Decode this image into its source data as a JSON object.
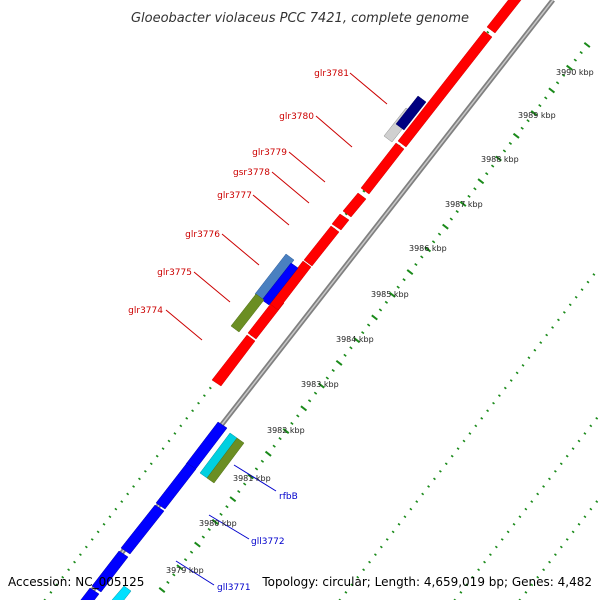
{
  "title": "Gloeobacter violaceus PCC 7421, complete genome",
  "footer": {
    "accession": "Accession: NC_005125",
    "info": "Topology: circular; Length: 4,659,019 bp; Genes: 4,482"
  },
  "colors": {
    "forward": "#ff0000",
    "reverse": "#0000ff",
    "backbone": "#888888",
    "ticks": "#1a8a1a",
    "label_forward": "#cc0000",
    "label_reverse": "#0000cc"
  },
  "scale_labels": [
    "3979 kbp",
    "3980 kbp",
    "3981 kbp",
    "3982 kbp",
    "3983 kbp",
    "3984 kbp",
    "3985 kbp",
    "3986 kbp",
    "3987 kbp",
    "3988 kbp",
    "3989 kbp",
    "3990 kbp"
  ],
  "gene_labels": [
    {
      "name": "glr3781",
      "strand": "forward"
    },
    {
      "name": "glr3780",
      "strand": "forward"
    },
    {
      "name": "glr3779",
      "strand": "forward"
    },
    {
      "name": "gsr3778",
      "strand": "forward"
    },
    {
      "name": "glr3777",
      "strand": "forward"
    },
    {
      "name": "glr3776",
      "strand": "forward"
    },
    {
      "name": "glr3775",
      "strand": "forward"
    },
    {
      "name": "glr3774",
      "strand": "forward"
    },
    {
      "name": "rfbB",
      "strand": "reverse"
    },
    {
      "name": "gll3772",
      "strand": "reverse"
    },
    {
      "name": "gll3771",
      "strand": "reverse"
    }
  ]
}
